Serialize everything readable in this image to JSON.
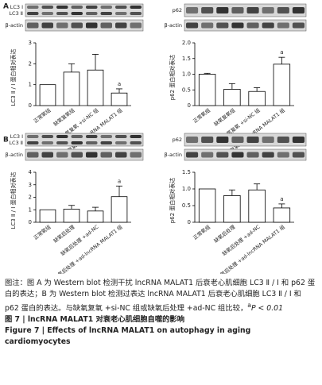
{
  "panels": [
    "A",
    "B"
  ],
  "blot_labels": [
    [
      "LC3 Ⅰ",
      "LC3 Ⅱ",
      "β-actin"
    ],
    [
      "p62",
      "β-actin"
    ],
    [
      "LC3 Ⅰ",
      "LC3 Ⅱ",
      "β-actin"
    ],
    [
      "p62",
      "β-actin"
    ]
  ],
  "chart_data": [
    {
      "type": "bar",
      "y_label": "LC3 Ⅱ / Ⅰ 蛋白相对表达",
      "categories": [
        "正常氧组",
        "缺氧复氧组",
        "缺氧复氧 +si-NC 组",
        "缺氧复氧 +si-lncRNA MALAT1 组"
      ],
      "values": [
        1.0,
        1.6,
        1.7,
        0.6
      ],
      "errors": [
        0,
        0.4,
        0.75,
        0.2
      ],
      "significance": [
        null,
        null,
        null,
        "a"
      ],
      "color": "#ffffff",
      "ylim": [
        0,
        3
      ],
      "yticks": [
        0,
        1,
        2,
        3
      ]
    },
    {
      "type": "bar",
      "y_label": "p62 蛋白相对表达",
      "categories": [
        "正常氧组",
        "缺氧复氧组",
        "缺氧复氧 +si-NC 组",
        "缺氧复氧 +si-lncRNA MALAT1 组"
      ],
      "values": [
        1.0,
        0.52,
        0.45,
        1.32
      ],
      "errors": [
        0.03,
        0.18,
        0.12,
        0.22
      ],
      "significance": [
        null,
        null,
        null,
        "a"
      ],
      "color": "#ffffff",
      "ylim": [
        0,
        2
      ],
      "yticks": [
        0,
        0.5,
        {
          "value": 1,
          "label": "1.0"
        },
        1.5,
        {
          "value": 2,
          "label": "2.0"
        }
      ]
    },
    {
      "type": "bar",
      "y_label": "LC3 Ⅱ / Ⅰ 蛋白相对表达",
      "categories": [
        "正常氧组",
        "缺氧后处理",
        "缺氧后处理 +ad-NC",
        "缺氧后处理 +ad-lncRNA MALAT1 组"
      ],
      "values": [
        1.0,
        1.05,
        0.9,
        2.05
      ],
      "errors": [
        0,
        0.3,
        0.3,
        0.85
      ],
      "significance": [
        null,
        null,
        null,
        "a"
      ],
      "color": "#ffffff",
      "ylim": [
        0,
        4
      ],
      "yticks": [
        0,
        1,
        2,
        3,
        4
      ]
    },
    {
      "type": "bar",
      "y_label": "p62 蛋白相对表达",
      "categories": [
        "正常氧组",
        "缺氧后处理",
        "缺氧后处理 +ad-NC",
        "缺氧后处理 +ad-lncRNA MALAT1 组"
      ],
      "values": [
        1.0,
        0.8,
        0.97,
        0.43
      ],
      "errors": [
        0,
        0.17,
        0.18,
        0.12
      ],
      "significance": [
        null,
        null,
        null,
        "a"
      ],
      "color": "#ffffff",
      "ylim": [
        0,
        1.5
      ],
      "yticks": [
        0,
        0.5,
        {
          "value": 1,
          "label": "1.0"
        },
        1.5
      ]
    }
  ],
  "caption": {
    "note": "图注：图 A 为 Western blot 检测干扰 lncRNA MALAT1 后衰老心肌细胞 LC3 Ⅱ / Ⅰ 和 p62 蛋白的表达；B 为 Western blot 检测过表达 lncRNA MALAT1 后衰老心肌细胞 LC3 Ⅱ / Ⅰ 和 p62 蛋白的表达。与缺氧复氧 +si-NC 组或缺氧后处理 +ad-NC 组比较，",
    "note_sup": "a",
    "note_end": "P < 0.01",
    "figure_cn": "图 7 | lncRNA MALAT1 对衰老心肌细胞自噬的影响",
    "figure_en": "Figure 7 | Effects of lncRNA MALAT1 on autophagy in aging cardiomyocytes"
  }
}
